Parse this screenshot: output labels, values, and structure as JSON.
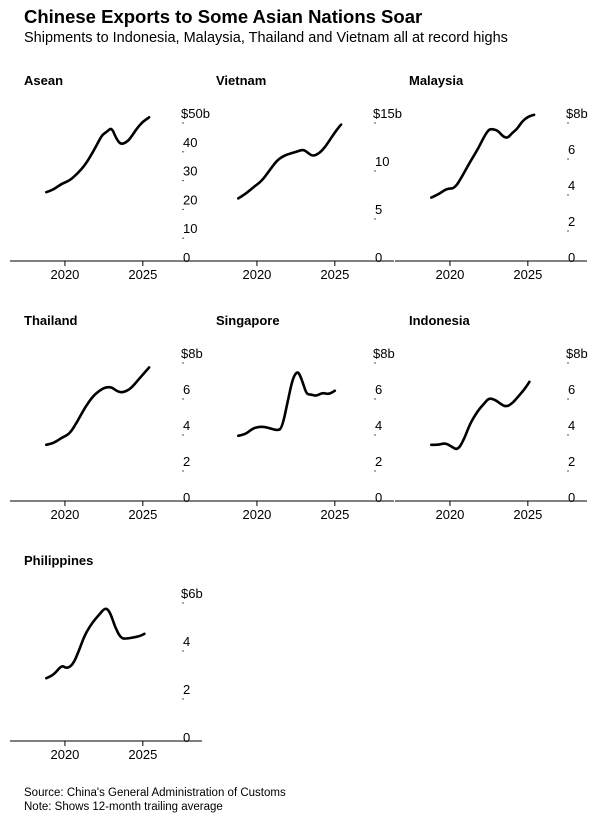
{
  "title": "Chinese Exports to Some Asian Nations Soar",
  "subtitle": "Shipments to Indonesia, Malaysia, Thailand and Vietnam all at record highs",
  "source": "Source: China's General Administration of Customs",
  "note": "Note: Shows 12-month trailing average",
  "chart_data": [
    {
      "type": "line",
      "title": "Asean",
      "ylim": [
        0,
        50
      ],
      "yticks": [
        0,
        10,
        20,
        30,
        40,
        50
      ],
      "ytick_labels": [
        "0",
        "10",
        "20",
        "30",
        "40",
        "$50b"
      ],
      "xticks": [
        2020,
        2025
      ],
      "xlim": [
        2017.5,
        2027
      ],
      "series": [
        {
          "x": [
            2018.8,
            2019.3,
            2019.8,
            2020.3,
            2020.8,
            2021.3,
            2021.8,
            2022.1,
            2022.4,
            2022.7,
            2023.0,
            2023.3,
            2023.6,
            2024.0,
            2024.3,
            2024.6,
            2025.0,
            2025.4
          ],
          "y": [
            22.5,
            23.5,
            25.5,
            26.5,
            29,
            32,
            36.5,
            39.5,
            42.5,
            43.5,
            45,
            41,
            39,
            40,
            42,
            44.5,
            47,
            48.5
          ]
        }
      ]
    },
    {
      "type": "line",
      "title": "Vietnam",
      "ylim": [
        0,
        15
      ],
      "yticks": [
        0,
        5,
        10,
        15
      ],
      "ytick_labels": [
        "0",
        "5",
        "10",
        "$15b"
      ],
      "xticks": [
        2020,
        2025
      ],
      "xlim": [
        2017.5,
        2027
      ],
      "series": [
        {
          "x": [
            2018.8,
            2019.3,
            2019.8,
            2020.3,
            2020.8,
            2021.3,
            2021.8,
            2022.2,
            2022.6,
            2023.0,
            2023.3,
            2023.6,
            2024.0,
            2024.4,
            2024.8,
            2025.1,
            2025.4
          ],
          "y": [
            6.1,
            6.6,
            7.3,
            7.9,
            9.0,
            10.1,
            10.6,
            10.8,
            11.0,
            11.2,
            10.8,
            10.5,
            10.8,
            11.5,
            12.5,
            13.2,
            13.8
          ]
        }
      ]
    },
    {
      "type": "line",
      "title": "Malaysia",
      "ylim": [
        0,
        8
      ],
      "yticks": [
        0,
        2,
        4,
        6,
        8
      ],
      "ytick_labels": [
        "0",
        "2",
        "4",
        "6",
        "$8b"
      ],
      "xticks": [
        2020,
        2025
      ],
      "xlim": [
        2017.5,
        2027
      ],
      "series": [
        {
          "x": [
            2018.8,
            2019.3,
            2019.8,
            2020.3,
            2020.8,
            2021.3,
            2021.8,
            2022.2,
            2022.5,
            2022.8,
            2023.1,
            2023.4,
            2023.7,
            2024.0,
            2024.3,
            2024.6,
            2025.0,
            2025.4
          ],
          "y": [
            3.3,
            3.5,
            3.8,
            3.8,
            4.5,
            5.3,
            6.0,
            6.7,
            7.1,
            7.1,
            7.0,
            6.7,
            6.6,
            6.9,
            7.1,
            7.5,
            7.8,
            7.9
          ]
        }
      ]
    },
    {
      "type": "line",
      "title": "Thailand",
      "ylim": [
        0,
        8
      ],
      "yticks": [
        0,
        2,
        4,
        6,
        8
      ],
      "ytick_labels": [
        "0",
        "2",
        "4",
        "6",
        "$8b"
      ],
      "xticks": [
        2020,
        2025
      ],
      "xlim": [
        2017.5,
        2027
      ],
      "series": [
        {
          "x": [
            2018.8,
            2019.3,
            2019.8,
            2020.3,
            2020.8,
            2021.3,
            2021.8,
            2022.2,
            2022.6,
            2023.0,
            2023.3,
            2023.6,
            2024.0,
            2024.3,
            2024.6,
            2025.0,
            2025.4
          ],
          "y": [
            2.9,
            3.0,
            3.3,
            3.5,
            4.2,
            5.0,
            5.6,
            5.9,
            6.1,
            6.1,
            5.9,
            5.8,
            5.9,
            6.1,
            6.4,
            6.8,
            7.2
          ]
        }
      ]
    },
    {
      "type": "line",
      "title": "Singapore",
      "ylim": [
        0,
        8
      ],
      "yticks": [
        0,
        2,
        4,
        6,
        8
      ],
      "ytick_labels": [
        "0",
        "2",
        "4",
        "6",
        "$8b"
      ],
      "xticks": [
        2020,
        2025
      ],
      "xlim": [
        2017.5,
        2027
      ],
      "series": [
        {
          "x": [
            2018.8,
            2019.3,
            2019.7,
            2020.1,
            2020.5,
            2020.9,
            2021.3,
            2021.6,
            2022.0,
            2022.3,
            2022.6,
            2022.8,
            2023.0,
            2023.2,
            2023.5,
            2023.8,
            2024.2,
            2024.6,
            2025.0
          ],
          "y": [
            3.4,
            3.5,
            3.8,
            3.9,
            3.9,
            3.8,
            3.7,
            3.8,
            5.4,
            6.6,
            7.0,
            6.7,
            6.2,
            5.7,
            5.7,
            5.6,
            5.8,
            5.7,
            5.9
          ]
        }
      ]
    },
    {
      "type": "line",
      "title": "Indonesia",
      "ylim": [
        0,
        8
      ],
      "yticks": [
        0,
        2,
        4,
        6,
        8
      ],
      "ytick_labels": [
        "0",
        "2",
        "4",
        "6",
        "$8b"
      ],
      "xticks": [
        2020,
        2025
      ],
      "xlim": [
        2017.5,
        2027
      ],
      "series": [
        {
          "x": [
            2018.8,
            2019.3,
            2019.7,
            2020.1,
            2020.5,
            2020.9,
            2021.3,
            2021.8,
            2022.2,
            2022.5,
            2022.9,
            2023.2,
            2023.6,
            2024.0,
            2024.4,
            2024.8,
            2025.1
          ],
          "y": [
            2.9,
            2.9,
            3.0,
            2.8,
            2.6,
            3.2,
            4.1,
            4.8,
            5.2,
            5.5,
            5.4,
            5.2,
            5.0,
            5.2,
            5.6,
            6.0,
            6.4
          ]
        }
      ]
    },
    {
      "type": "line",
      "title": "Philippines",
      "ylim": [
        0,
        6
      ],
      "yticks": [
        0,
        2,
        4,
        6
      ],
      "ytick_labels": [
        "0",
        "2",
        "4",
        "$6b"
      ],
      "xticks": [
        2020,
        2025
      ],
      "xlim": [
        2017.5,
        2027
      ],
      "series": [
        {
          "x": [
            2018.8,
            2019.3,
            2019.8,
            2020.1,
            2020.5,
            2020.9,
            2021.3,
            2021.8,
            2022.2,
            2022.6,
            2022.9,
            2023.2,
            2023.6,
            2024.0,
            2024.4,
            2024.8,
            2025.1
          ],
          "y": [
            2.45,
            2.6,
            3.0,
            2.85,
            3.0,
            3.6,
            4.3,
            4.8,
            5.1,
            5.4,
            5.2,
            4.6,
            4.1,
            4.1,
            4.15,
            4.2,
            4.3
          ]
        }
      ]
    }
  ]
}
